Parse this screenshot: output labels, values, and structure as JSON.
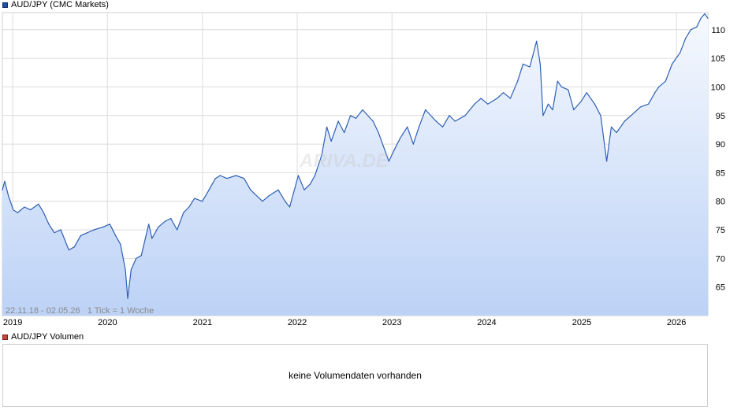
{
  "price_legend": {
    "label": "AUD/JPY (CMC Markets)"
  },
  "volume_legend": {
    "label": "AUD/JPY Volumen"
  },
  "volume_panel": {
    "message": "keine Volumendaten vorhanden"
  },
  "range_info": {
    "text": "22.11.18 - 02.05.26   1 Tick = 1 Woche"
  },
  "watermark": {
    "text": "ARIVA.DE"
  },
  "colors": {
    "line": "#2e5fb5",
    "fill_top": "#f6f9fe",
    "fill_bottom": "#bcd2f6",
    "grid": "#dcdcdc",
    "legend_price": "#1f4fa0",
    "legend_volume": "#c8453a"
  },
  "chart_data": {
    "type": "area",
    "title": "AUD/JPY (CMC Markets)",
    "xlabel": "",
    "ylabel": "",
    "grid": true,
    "y_ticks": [
      65,
      70,
      75,
      80,
      85,
      90,
      95,
      100,
      105,
      110
    ],
    "ylim": [
      60,
      113
    ],
    "x_ticks": [
      "2019",
      "2020",
      "2021",
      "2022",
      "2023",
      "2024",
      "2025",
      "2026"
    ],
    "xlim": [
      "2018-11-22",
      "2026-05-02"
    ],
    "series": [
      {
        "name": "AUD/JPY",
        "x": [
          "2018-11-22",
          "2018-12-01",
          "2018-12-15",
          "2019-01-03",
          "2019-01-20",
          "2019-02-15",
          "2019-03-10",
          "2019-04-10",
          "2019-04-30",
          "2019-05-20",
          "2019-06-10",
          "2019-07-05",
          "2019-08-05",
          "2019-08-26",
          "2019-09-20",
          "2019-10-15",
          "2019-11-10",
          "2019-12-15",
          "2020-01-10",
          "2020-02-01",
          "2020-02-20",
          "2020-03-10",
          "2020-03-19",
          "2020-04-01",
          "2020-04-20",
          "2020-05-10",
          "2020-06-08",
          "2020-06-20",
          "2020-07-15",
          "2020-08-10",
          "2020-09-01",
          "2020-09-25",
          "2020-10-20",
          "2020-11-10",
          "2020-12-01",
          "2020-12-31",
          "2021-01-20",
          "2021-02-20",
          "2021-03-10",
          "2021-04-05",
          "2021-05-10",
          "2021-06-10",
          "2021-07-05",
          "2021-08-20",
          "2021-09-15",
          "2021-10-20",
          "2021-11-15",
          "2021-12-03",
          "2022-01-05",
          "2022-01-28",
          "2022-02-20",
          "2022-03-10",
          "2022-04-05",
          "2022-04-25",
          "2022-05-12",
          "2022-06-08",
          "2022-07-01",
          "2022-07-25",
          "2022-08-15",
          "2022-09-10",
          "2022-10-20",
          "2022-11-10",
          "2022-12-20",
          "2023-01-10",
          "2023-02-01",
          "2023-03-01",
          "2023-03-24",
          "2023-04-15",
          "2023-05-10",
          "2023-06-20",
          "2023-07-15",
          "2023-08-10",
          "2023-09-01",
          "2023-10-10",
          "2023-11-15",
          "2023-12-10",
          "2024-01-05",
          "2024-02-10",
          "2024-03-05",
          "2024-04-01",
          "2024-04-29",
          "2024-05-20",
          "2024-06-15",
          "2024-07-11",
          "2024-07-25",
          "2024-08-05",
          "2024-08-25",
          "2024-09-11",
          "2024-09-30",
          "2024-10-15",
          "2024-11-10",
          "2024-12-01",
          "2024-12-30",
          "2025-01-20",
          "2025-02-20",
          "2025-03-15",
          "2025-04-07",
          "2025-04-25",
          "2025-05-15",
          "2025-06-15",
          "2025-07-10",
          "2025-08-15",
          "2025-09-15",
          "2025-10-10",
          "2025-10-25",
          "2025-11-20",
          "2025-12-15",
          "2026-01-15",
          "2026-02-05",
          "2026-02-25",
          "2026-03-20",
          "2026-04-05",
          "2026-04-20",
          "2026-05-02"
        ],
        "values": [
          82.0,
          83.5,
          81.0,
          78.5,
          78.0,
          79.0,
          78.5,
          79.5,
          78.0,
          76.0,
          74.5,
          75.0,
          71.5,
          72.0,
          74.0,
          74.5,
          75.0,
          75.5,
          76.0,
          74.0,
          72.5,
          68.0,
          63.0,
          68.0,
          70.0,
          70.5,
          76.0,
          73.5,
          75.5,
          76.5,
          77.0,
          75.0,
          78.0,
          79.0,
          80.5,
          80.0,
          81.5,
          84.0,
          84.5,
          84.0,
          84.5,
          84.0,
          82.0,
          80.0,
          81.0,
          82.0,
          80.0,
          79.0,
          84.5,
          82.0,
          83.0,
          84.5,
          88.0,
          93.0,
          90.5,
          94.0,
          92.0,
          95.0,
          94.5,
          96.0,
          94.0,
          92.0,
          87.0,
          89.0,
          91.0,
          93.0,
          90.0,
          93.0,
          96.0,
          94.0,
          93.0,
          95.0,
          94.0,
          95.0,
          97.0,
          98.0,
          97.0,
          98.0,
          99.0,
          98.0,
          101.0,
          104.0,
          103.5,
          108.0,
          104.0,
          95.0,
          97.0,
          96.0,
          101.0,
          100.0,
          99.5,
          96.0,
          97.5,
          99.0,
          97.0,
          95.0,
          87.0,
          93.0,
          92.0,
          94.0,
          95.0,
          96.5,
          97.0,
          99.0,
          100.0,
          101.0,
          104.0,
          106.0,
          108.5,
          110.0,
          110.5,
          112.0,
          112.8,
          112.0
        ]
      }
    ]
  }
}
